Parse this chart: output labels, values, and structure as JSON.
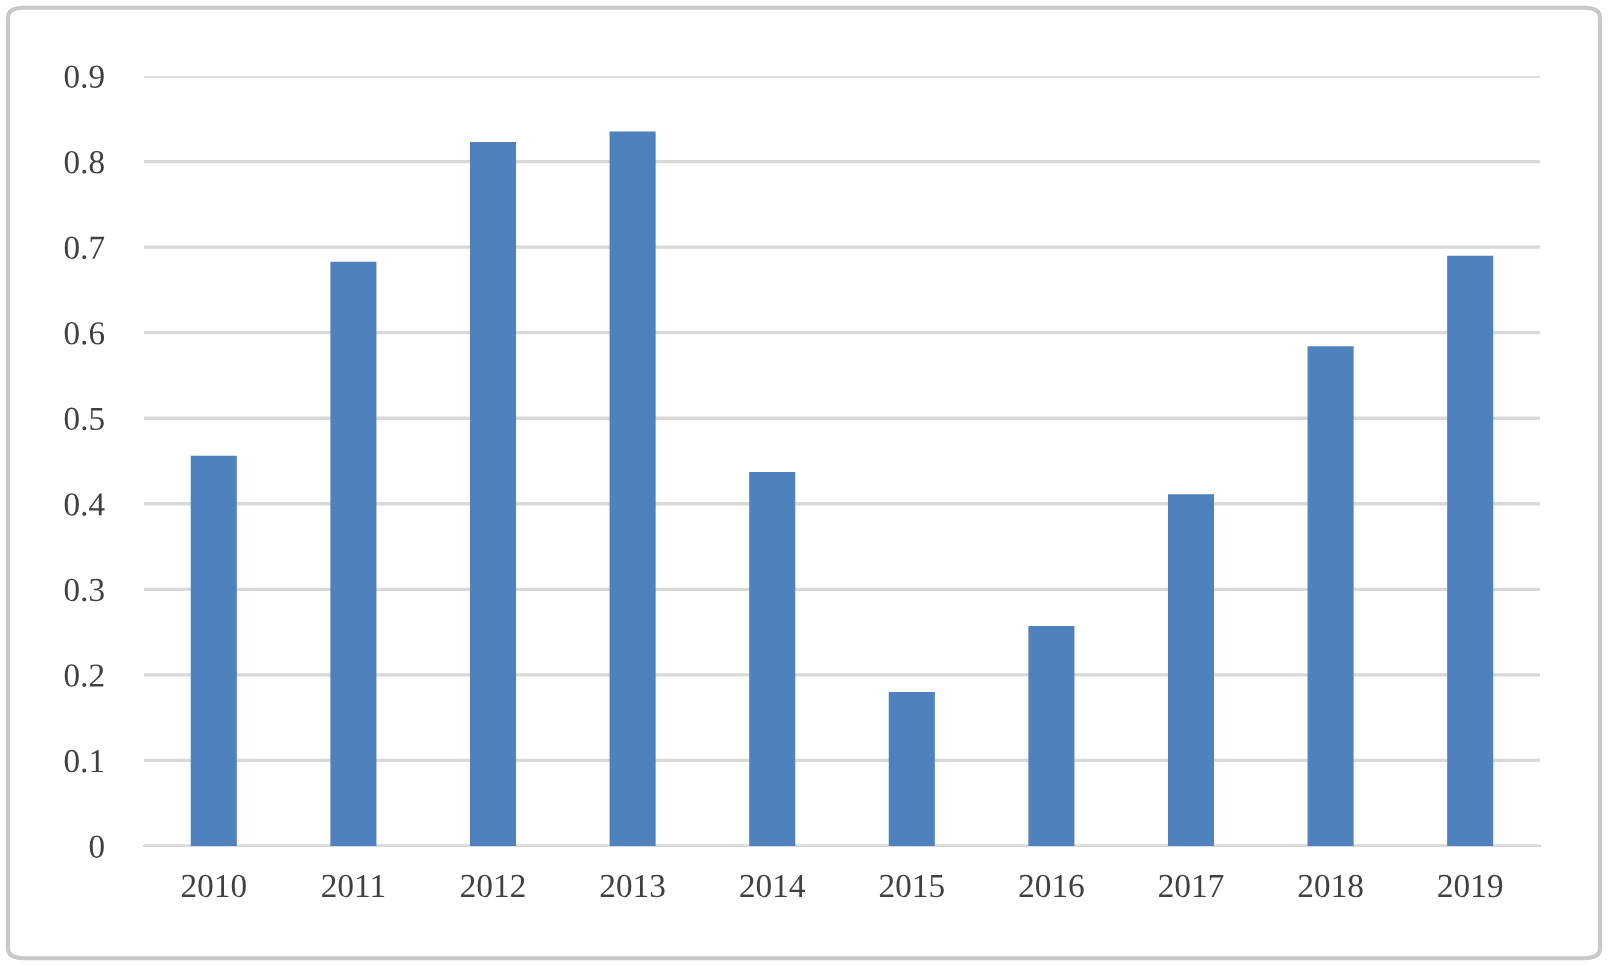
{
  "chart_data": {
    "type": "bar",
    "categories": [
      "2010",
      "2011",
      "2012",
      "2013",
      "2014",
      "2015",
      "2016",
      "2017",
      "2018",
      "2019"
    ],
    "values": [
      0.456,
      0.683,
      0.823,
      0.835,
      0.437,
      0.18,
      0.257,
      0.411,
      0.584,
      0.69
    ],
    "color": "#4f81bd",
    "ylim": [
      0,
      0.9
    ],
    "yticks": [
      {
        "value": 0,
        "label": "0"
      },
      0.1,
      0.2,
      0.3,
      0.4,
      0.5,
      0.6,
      0.7,
      0.8,
      0.9
    ],
    "grid": "y",
    "legend": false
  }
}
